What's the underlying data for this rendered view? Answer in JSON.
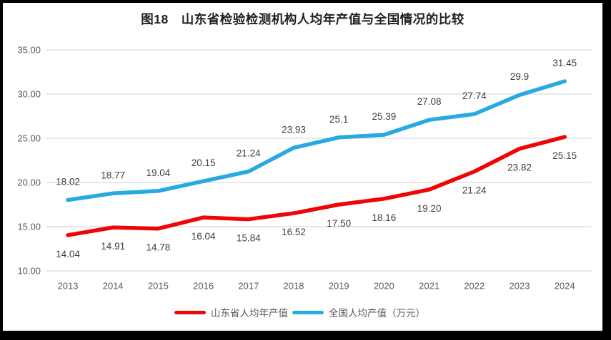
{
  "title": "图18　山东省检验检测机构人均年产值与全国情况的比较",
  "colors": {
    "shandong": "#ee0505",
    "national": "#27a9e1",
    "grid": "#d9d9d9",
    "axis_text": "#595959",
    "label_text": "#3f3f3f",
    "title_text": "#1f1f1f",
    "frame": "#000000",
    "background": "#ffffff"
  },
  "legend": {
    "items": [
      {
        "id": "shandong",
        "label": "山东省人均年产值",
        "color": "#ee0505"
      },
      {
        "id": "national",
        "label": "全国人均产值（万元）",
        "color": "#27a9e1"
      }
    ]
  },
  "chart_data": {
    "type": "line",
    "title": "图18　山东省检验检测机构人均年产值与全国情况的比较",
    "x": [
      "2013",
      "2014",
      "2015",
      "2016",
      "2017",
      "2018",
      "2019",
      "2020",
      "2021",
      "2022",
      "2023",
      "2024"
    ],
    "series": [
      {
        "id": "shandong",
        "name": "山东省人均年产值",
        "color": "#ee0505",
        "values": [
          14.04,
          14.91,
          14.78,
          16.04,
          15.84,
          16.52,
          17.5,
          18.16,
          19.2,
          21.24,
          23.82,
          25.15
        ],
        "labels": [
          "14.04",
          "14.91",
          "14.78",
          "16.04",
          "15.84",
          "16.52",
          "17.50",
          "18.16",
          "19.20",
          "21.24",
          "23.82",
          "25.15"
        ],
        "label_position": "below"
      },
      {
        "id": "national",
        "name": "全国人均产值（万元）",
        "color": "#27a9e1",
        "values": [
          18.02,
          18.77,
          19.04,
          20.15,
          21.24,
          23.93,
          25.1,
          25.39,
          27.08,
          27.74,
          29.9,
          31.45
        ],
        "labels": [
          "18.02",
          "18.77",
          "19.04",
          "20.15",
          "21.24",
          "23.93",
          "25.1",
          "25.39",
          "27.08",
          "27.74",
          "29.9",
          "31.45"
        ],
        "label_position": "above"
      }
    ],
    "xlabel": "",
    "ylabel": "",
    "ylim": [
      10,
      35
    ],
    "ytick_step": 5,
    "yticks": [
      "35.00",
      "30.00",
      "25.00",
      "20.00",
      "15.00",
      "10.00"
    ],
    "grid": "horizontal",
    "legend_position": "bottom"
  }
}
